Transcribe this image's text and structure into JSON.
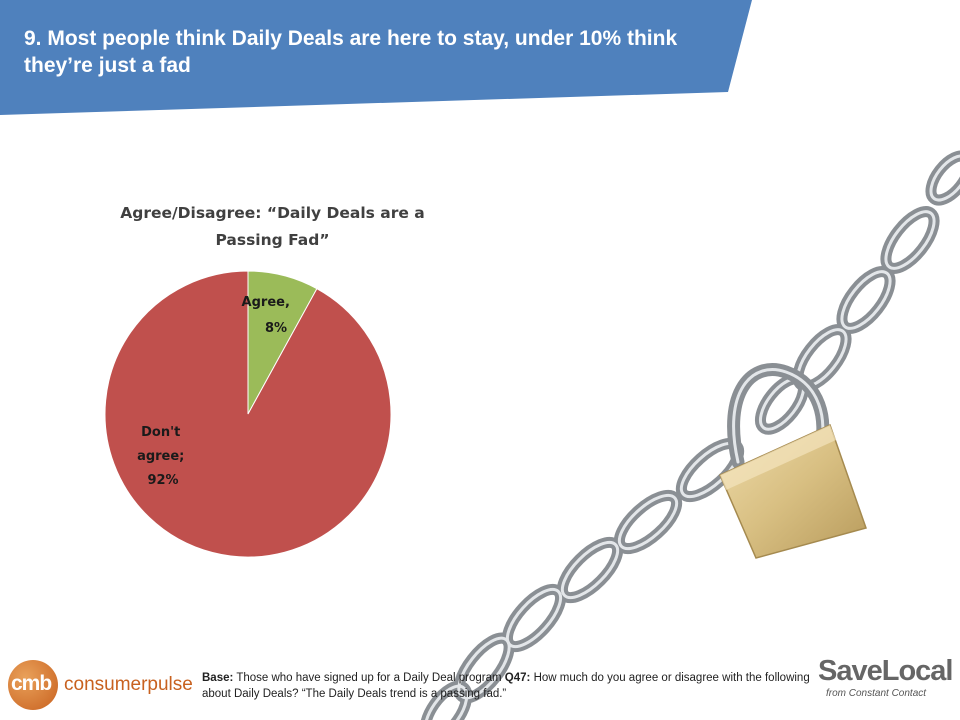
{
  "slide": {
    "title": "9. Most people think Daily Deals are here to stay, under 10% think they’re just a fad"
  },
  "chart_data": {
    "type": "pie",
    "title_line1": "Agree/Disagree: “Daily Deals are a",
    "title_line2": "Passing Fad”",
    "slices": [
      {
        "name": "Agree",
        "value": 8,
        "label_line1": "Agree,",
        "label_line2": "8%",
        "color": "#9bbb59"
      },
      {
        "name": "Don't agree",
        "value": 92,
        "label_line1": "Don't",
        "label_line2": "agree;",
        "label_line3": "92%",
        "color": "#c0504d"
      }
    ],
    "start_angle_deg": 0,
    "direction": "clockwise"
  },
  "footnote": {
    "base_label": "Base:",
    "base_text": " Those who have signed up for a Daily Deal program  ",
    "q_label": "Q47:",
    "q_text": " How much do you agree or disagree with the following about Daily Deals? “The Daily Deals trend is a passing fad.”"
  },
  "logos": {
    "cmb_mark": "cmb",
    "cmb_text": "consumerpulse",
    "savelocal_name": "SaveLocal",
    "savelocal_sub": "from Constant Contact"
  },
  "colors": {
    "banner": "#4f81bd",
    "agree": "#9bbb59",
    "disagree": "#c0504d",
    "lock": "#d8bf82"
  }
}
